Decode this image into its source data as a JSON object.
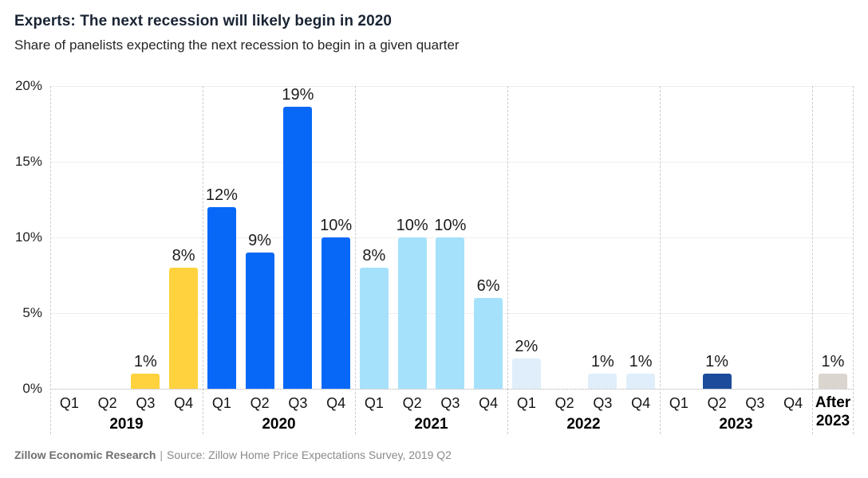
{
  "chart_data": {
    "type": "bar",
    "title": "Experts: The next recession will likely begin in 2020",
    "subtitle": "Share of panelists expecting the next recession to begin in a given quarter",
    "xlabel": "",
    "ylabel": "",
    "ylim": [
      0,
      20
    ],
    "yticks": [
      0,
      5,
      10,
      15,
      20
    ],
    "ytick_labels": [
      "0%",
      "5%",
      "10%",
      "15%",
      "20%"
    ],
    "grid": "light horizontal lines at 5% steps, dashed vertical year separators, dotted zero baseline",
    "legend_position": "none",
    "groups": [
      {
        "year": "2019",
        "color": "#FFD23E",
        "categories": [
          "Q1",
          "Q2",
          "Q3",
          "Q4"
        ],
        "values": [
          0,
          0,
          1,
          8
        ],
        "value_labels": [
          "",
          "",
          "1%",
          "8%"
        ]
      },
      {
        "year": "2020",
        "color": "#0768F7",
        "categories": [
          "Q1",
          "Q2",
          "Q3",
          "Q4"
        ],
        "values": [
          12,
          9,
          19,
          10
        ],
        "value_labels": [
          "12%",
          "9%",
          "19%",
          "10%"
        ]
      },
      {
        "year": "2021",
        "color": "#A5E1FB",
        "categories": [
          "Q1",
          "Q2",
          "Q3",
          "Q4"
        ],
        "values": [
          8,
          10,
          10,
          6
        ],
        "value_labels": [
          "8%",
          "10%",
          "10%",
          "6%"
        ]
      },
      {
        "year": "2022",
        "color": "#DFEEFA",
        "categories": [
          "Q1",
          "Q2",
          "Q3",
          "Q4"
        ],
        "values": [
          2,
          0,
          1,
          1
        ],
        "value_labels": [
          "2%",
          "",
          "1%",
          "1%"
        ]
      },
      {
        "year": "2023",
        "color": "#1C4B9C",
        "categories": [
          "Q1",
          "Q2",
          "Q3",
          "Q4"
        ],
        "values": [
          0,
          1,
          0,
          0
        ],
        "value_labels": [
          "",
          "1%",
          "",
          ""
        ]
      },
      {
        "year": "After 2023",
        "year_lines": [
          "After",
          "2023"
        ],
        "color": "#DBD5D0",
        "categories": [
          ""
        ],
        "values": [
          1
        ],
        "value_labels": [
          "1%"
        ]
      }
    ]
  },
  "footer": {
    "brand": "Zillow Economic Research",
    "separator": "|",
    "source": "Source: Zillow Home Price Expectations Survey, 2019 Q2"
  }
}
